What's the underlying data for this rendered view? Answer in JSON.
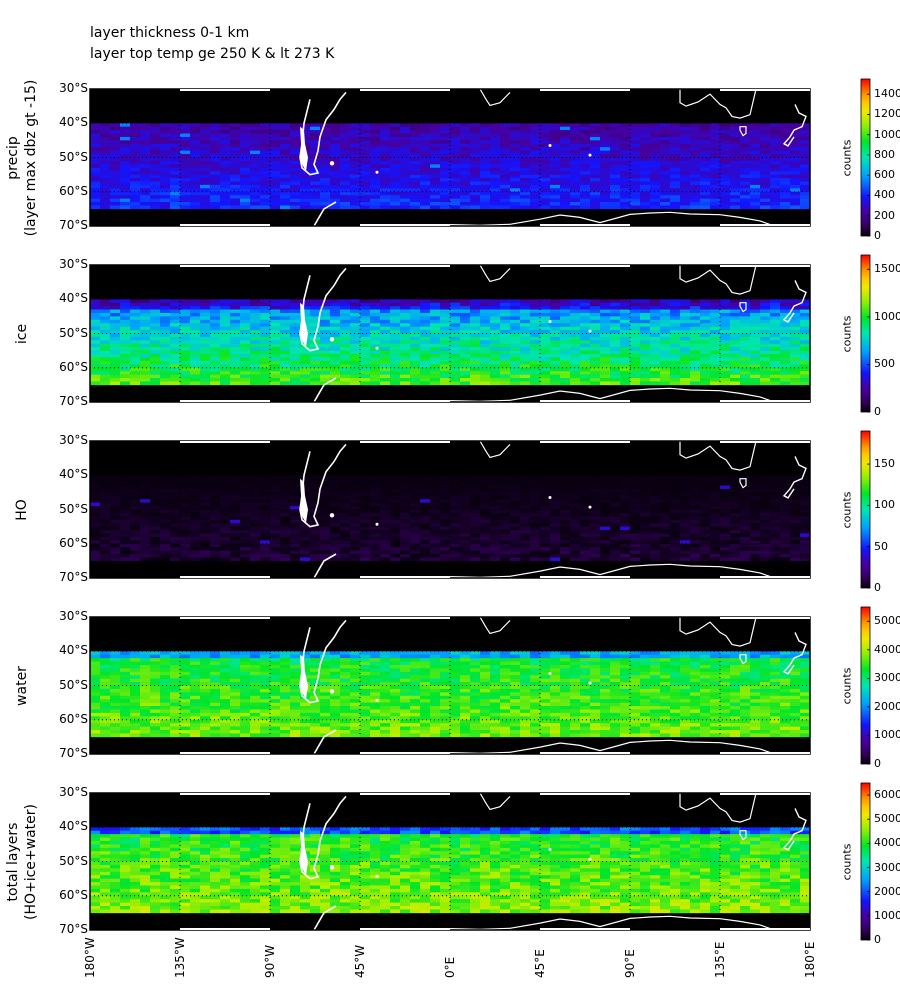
{
  "header": {
    "line1": "layer thickness 0-1 km",
    "line2": "layer top temp ge 250 K & lt 273 K"
  },
  "chart_data": {
    "type": "heatmap",
    "x_tick_labels": [
      "180°W",
      "135°W",
      "90°W",
      "45°W",
      "0°E",
      "45°E",
      "90°E",
      "135°E",
      "180°E"
    ],
    "y_tick_labels": [
      "30°S",
      "40°S",
      "50°S",
      "60°S",
      "70°S"
    ],
    "xlim": [
      -180,
      180
    ],
    "ylim": [
      -70,
      -30
    ],
    "data_lat_range": [
      -65,
      -40
    ],
    "colormap": "rainbow (black to red)",
    "panels": [
      {
        "id": "precip",
        "ylabel": "precip\n(layer max dbz gt -15)",
        "colorbar_label": "counts",
        "colorbar_ticks": [
          "0",
          "200",
          "400",
          "600",
          "800",
          "1000",
          "1200",
          "1400"
        ],
        "vmax": 1550
      },
      {
        "id": "ice",
        "ylabel": "ice",
        "colorbar_label": "counts",
        "colorbar_ticks": [
          "0",
          "500",
          "1000",
          "1500"
        ],
        "vmax": 1650
      },
      {
        "id": "ho",
        "ylabel": "HO",
        "colorbar_label": "counts",
        "colorbar_ticks": [
          "0",
          "50",
          "100",
          "150"
        ],
        "vmax": 190
      },
      {
        "id": "water",
        "ylabel": "water",
        "colorbar_label": "counts",
        "colorbar_ticks": [
          "0",
          "1000",
          "2000",
          "3000",
          "4000",
          "5000"
        ],
        "vmax": 5500
      },
      {
        "id": "total",
        "ylabel": "total layers\n(HO+ice+water)",
        "colorbar_label": "counts",
        "colorbar_ticks": [
          "0",
          "1000",
          "2000",
          "3000",
          "4000",
          "5000",
          "6000"
        ],
        "vmax": 6500
      }
    ]
  }
}
